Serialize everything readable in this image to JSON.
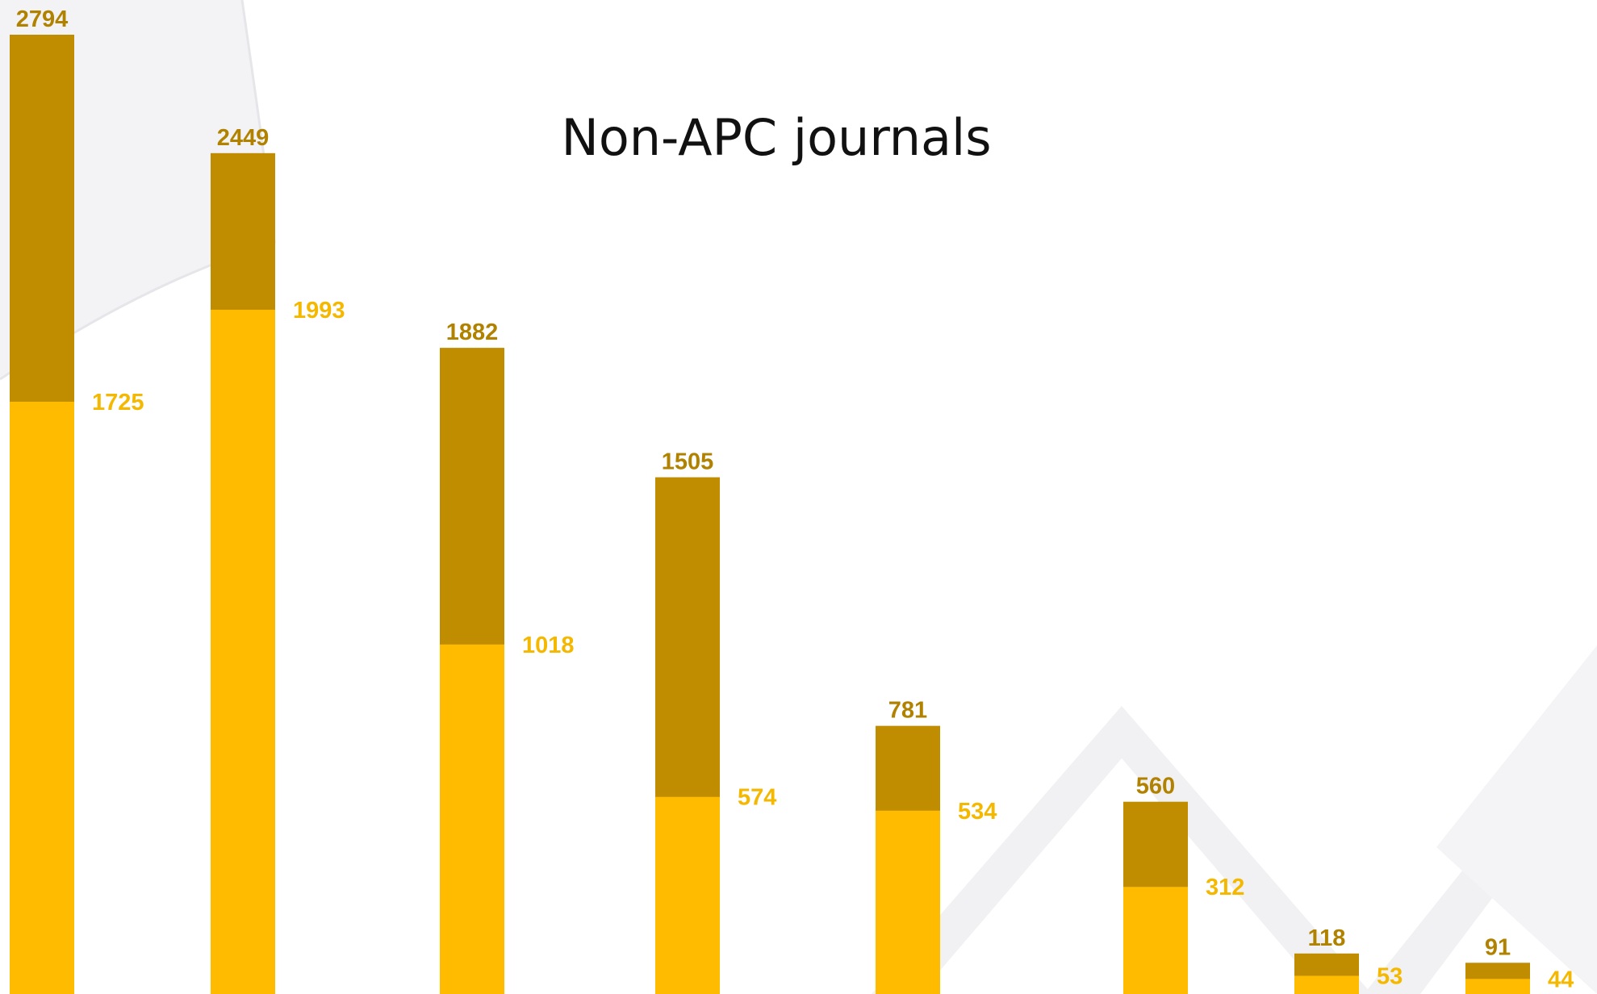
{
  "colors": {
    "total": "#c18d00",
    "inner": "#ffbb00",
    "total_label": "#b08200",
    "inner_label": "#f5b800",
    "title": "#111111",
    "background_decoration": "#f1f1f3"
  },
  "chart_data": {
    "type": "bar",
    "title": "Non-APC journals",
    "xlabel": "",
    "ylabel": "",
    "ylim": [
      0,
      2800
    ],
    "grid": false,
    "legend": "none",
    "categories": [
      "",
      "",
      "",
      "",
      "",
      "",
      "",
      ""
    ],
    "series": [
      {
        "values": [
          2794,
          2449,
          1882,
          1505,
          781,
          560,
          118,
          91
        ]
      },
      {
        "values": [
          1725,
          1993,
          1018,
          574,
          534,
          312,
          53,
          44
        ]
      }
    ]
  }
}
